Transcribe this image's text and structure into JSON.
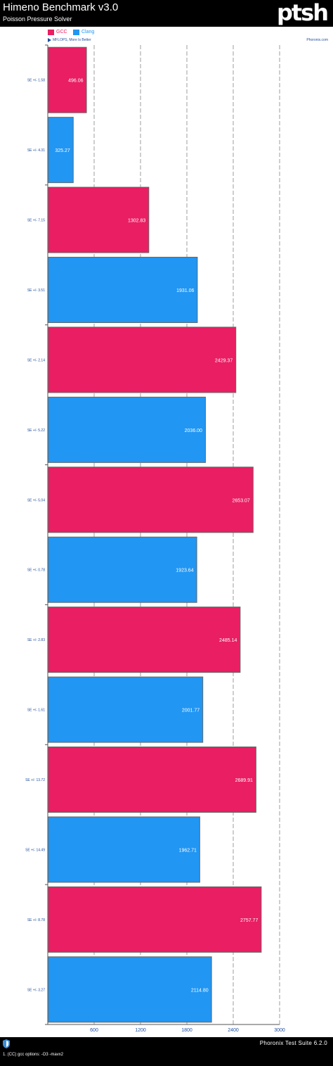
{
  "header": {
    "title": "Himeno Benchmark v3.0",
    "subtitle": "Poisson Pressure Solver",
    "logo": "ptsh"
  },
  "note": "MFLOPS, More Is Better",
  "source": "Phoronix.com",
  "legend": [
    {
      "label": "GCC",
      "color": "#e91e63"
    },
    {
      "label": "Clang",
      "color": "#2196f3"
    }
  ],
  "footer": {
    "suite": "Phoronix Test Suite 6.2.0",
    "footnote": "1. (CC) gcc options: -O3 -mavx2",
    "icon": "shield-icon"
  },
  "chart_data": {
    "type": "bar",
    "orientation": "horizontal",
    "xlim": [
      0,
      3000
    ],
    "x_ticks": [
      600,
      1200,
      1800,
      2400,
      3000
    ],
    "grid": true,
    "legend_position": "top-left",
    "bars": [
      {
        "series": "GCC",
        "value": 496.06,
        "value_label": "496.06",
        "se_label": "SE +/- 1.58"
      },
      {
        "series": "Clang",
        "value": 325.27,
        "value_label": "325.27",
        "se_label": "SE +/- 4.31"
      },
      {
        "series": "GCC",
        "value": 1302.83,
        "value_label": "1302.83",
        "se_label": "SE +/- 7.15"
      },
      {
        "series": "Clang",
        "value": 1931.06,
        "value_label": "1931.06",
        "se_label": "SE +/- 3.51"
      },
      {
        "series": "GCC",
        "value": 2429.37,
        "value_label": "2429.37",
        "se_label": "SE +/- 2.14"
      },
      {
        "series": "Clang",
        "value": 2036.0,
        "value_label": "2036.00",
        "se_label": "SE +/- 5.22"
      },
      {
        "series": "GCC",
        "value": 2653.07,
        "value_label": "2653.07",
        "se_label": "SE +/- 5.04"
      },
      {
        "series": "Clang",
        "value": 1923.64,
        "value_label": "1923.64",
        "se_label": "SE +/- 0.78"
      },
      {
        "series": "GCC",
        "value": 2485.14,
        "value_label": "2485.14",
        "se_label": "SE +/- 2.83"
      },
      {
        "series": "Clang",
        "value": 2001.77,
        "value_label": "2001.77",
        "se_label": "SE +/- 1.61"
      },
      {
        "series": "GCC",
        "value": 2689.91,
        "value_label": "2689.91",
        "se_label": "SE +/- 13.72"
      },
      {
        "series": "Clang",
        "value": 1962.71,
        "value_label": "1962.71",
        "se_label": "SE +/- 14.49"
      },
      {
        "series": "GCC",
        "value": 2757.77,
        "value_label": "2757.77",
        "se_label": "SE +/- 8.78"
      },
      {
        "series": "Clang",
        "value": 2114.8,
        "value_label": "2114.80",
        "se_label": "SE +/- 3.27"
      }
    ]
  }
}
